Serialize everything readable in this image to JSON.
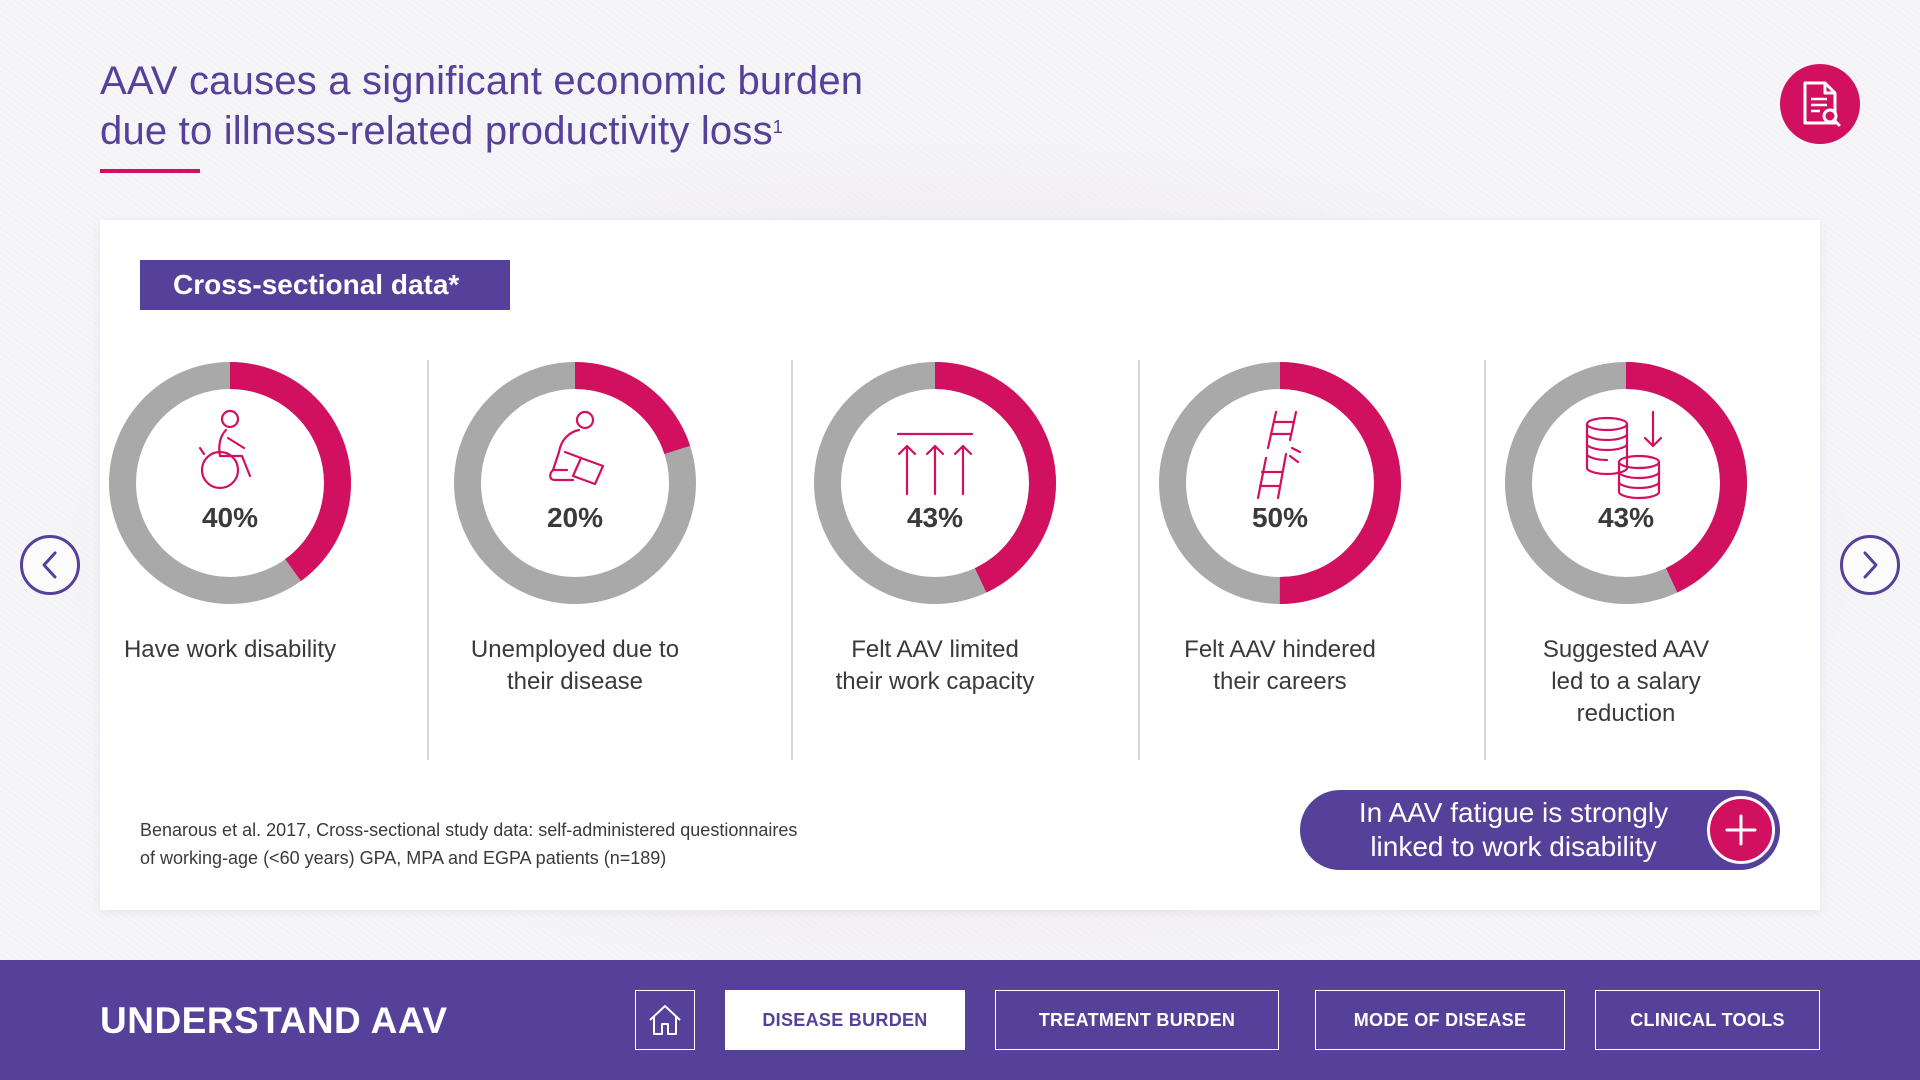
{
  "headline": {
    "line1": "AAV causes a significant economic burden",
    "line2": "due to illness-related productivity loss",
    "ref": "1"
  },
  "section_tag": "Cross-sectional data*",
  "stats": [
    {
      "percent": "40%",
      "fraction": 0.4,
      "label_lines": [
        "Have work disability"
      ],
      "icon": "wheelchair-icon"
    },
    {
      "percent": "20%",
      "fraction": 0.2,
      "label_lines": [
        "Unemployed due to",
        "their disease"
      ],
      "icon": "person-dropping-box-icon"
    },
    {
      "percent": "43%",
      "fraction": 0.43,
      "label_lines": [
        "Felt AAV limited",
        "their work capacity"
      ],
      "icon": "capped-arrows-icon"
    },
    {
      "percent": "50%",
      "fraction": 0.5,
      "label_lines": [
        "Felt AAV hindered",
        "their careers"
      ],
      "icon": "broken-ladder-icon"
    },
    {
      "percent": "43%",
      "fraction": 0.43,
      "label_lines": [
        "Suggested AAV",
        "led to a salary",
        "reduction"
      ],
      "icon": "coins-down-icon"
    }
  ],
  "footnote": {
    "line1": "Benarous et al. 2017, Cross-sectional study data: self-administered questionnaires",
    "line2": "of working-age (<60 years) GPA, MPA and EGPA patients (n=189)"
  },
  "callout": {
    "line1": "In AAV fatigue is strongly",
    "line2": "linked to work disability"
  },
  "footer": {
    "brand": "UNDERSTAND AAV",
    "tabs": [
      {
        "label": "DISEASE BURDEN",
        "active": true
      },
      {
        "label": "TREATMENT BURDEN",
        "active": false
      },
      {
        "label": "MODE OF DISEASE",
        "active": false
      },
      {
        "label": "CLINICAL TOOLS",
        "active": false
      }
    ]
  },
  "colors": {
    "accent": "#d1105f",
    "brand": "#55419a",
    "ring_track": "#a9a9a9",
    "text": "#3a3a3a"
  }
}
